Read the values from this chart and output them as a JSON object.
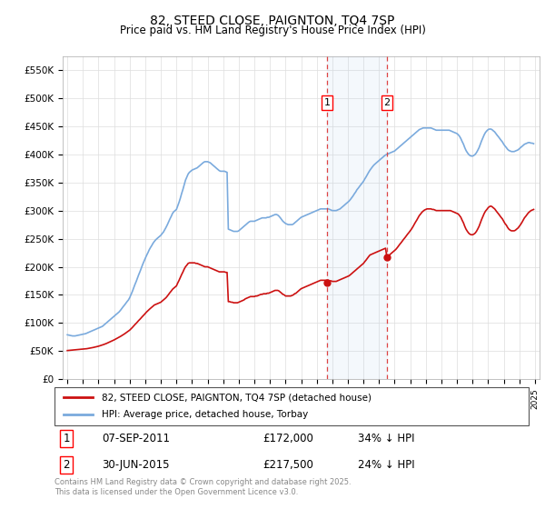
{
  "title": "82, STEED CLOSE, PAIGNTON, TQ4 7SP",
  "subtitle": "Price paid vs. HM Land Registry's House Price Index (HPI)",
  "ylim": [
    0,
    575000
  ],
  "yticks": [
    0,
    50000,
    100000,
    150000,
    200000,
    250000,
    300000,
    350000,
    400000,
    450000,
    500000,
    550000
  ],
  "ytick_labels": [
    "£0",
    "£50K",
    "£100K",
    "£150K",
    "£200K",
    "£250K",
    "£300K",
    "£350K",
    "£400K",
    "£450K",
    "£500K",
    "£550K"
  ],
  "hpi_color": "#7aaadd",
  "price_color": "#cc1111",
  "transaction1": {
    "date": "07-SEP-2011",
    "price": 172000,
    "label": "1",
    "year": 2011.67
  },
  "transaction2": {
    "date": "30-JUN-2015",
    "price": 217500,
    "label": "2",
    "year": 2015.5
  },
  "legend1": "82, STEED CLOSE, PAIGNTON, TQ4 7SP (detached house)",
  "legend2": "HPI: Average price, detached house, Torbay",
  "footnote": "Contains HM Land Registry data © Crown copyright and database right 2025.\nThis data is licensed under the Open Government Licence v3.0.",
  "hpi_data_x": [
    1995.0,
    1995.08,
    1995.17,
    1995.25,
    1995.33,
    1995.42,
    1995.5,
    1995.58,
    1995.67,
    1995.75,
    1995.83,
    1995.92,
    1996.0,
    1996.08,
    1996.17,
    1996.25,
    1996.33,
    1996.42,
    1996.5,
    1996.58,
    1996.67,
    1996.75,
    1996.83,
    1996.92,
    1997.0,
    1997.08,
    1997.17,
    1997.25,
    1997.33,
    1997.42,
    1997.5,
    1997.58,
    1997.67,
    1997.75,
    1997.83,
    1997.92,
    1998.0,
    1998.08,
    1998.17,
    1998.25,
    1998.33,
    1998.42,
    1998.5,
    1998.58,
    1998.67,
    1998.75,
    1998.83,
    1998.92,
    1999.0,
    1999.08,
    1999.17,
    1999.25,
    1999.33,
    1999.42,
    1999.5,
    1999.58,
    1999.67,
    1999.75,
    1999.83,
    1999.92,
    2000.0,
    2000.08,
    2000.17,
    2000.25,
    2000.33,
    2000.42,
    2000.5,
    2000.58,
    2000.67,
    2000.75,
    2000.83,
    2000.92,
    2001.0,
    2001.08,
    2001.17,
    2001.25,
    2001.33,
    2001.42,
    2001.5,
    2001.58,
    2001.67,
    2001.75,
    2001.83,
    2001.92,
    2002.0,
    2002.08,
    2002.17,
    2002.25,
    2002.33,
    2002.42,
    2002.5,
    2002.58,
    2002.67,
    2002.75,
    2002.83,
    2002.92,
    2003.0,
    2003.08,
    2003.17,
    2003.25,
    2003.33,
    2003.42,
    2003.5,
    2003.58,
    2003.67,
    2003.75,
    2003.83,
    2003.92,
    2004.0,
    2004.08,
    2004.17,
    2004.25,
    2004.33,
    2004.42,
    2004.5,
    2004.58,
    2004.67,
    2004.75,
    2004.83,
    2004.92,
    2005.0,
    2005.08,
    2005.17,
    2005.25,
    2005.33,
    2005.42,
    2005.5,
    2005.58,
    2005.67,
    2005.75,
    2005.83,
    2005.92,
    2006.0,
    2006.08,
    2006.17,
    2006.25,
    2006.33,
    2006.42,
    2006.5,
    2006.58,
    2006.67,
    2006.75,
    2006.83,
    2006.92,
    2007.0,
    2007.08,
    2007.17,
    2007.25,
    2007.33,
    2007.42,
    2007.5,
    2007.58,
    2007.67,
    2007.75,
    2007.83,
    2007.92,
    2008.0,
    2008.08,
    2008.17,
    2008.25,
    2008.33,
    2008.42,
    2008.5,
    2008.58,
    2008.67,
    2008.75,
    2008.83,
    2008.92,
    2009.0,
    2009.08,
    2009.17,
    2009.25,
    2009.33,
    2009.42,
    2009.5,
    2009.58,
    2009.67,
    2009.75,
    2009.83,
    2009.92,
    2010.0,
    2010.08,
    2010.17,
    2010.25,
    2010.33,
    2010.42,
    2010.5,
    2010.58,
    2010.67,
    2010.75,
    2010.83,
    2010.92,
    2011.0,
    2011.08,
    2011.17,
    2011.25,
    2011.33,
    2011.42,
    2011.5,
    2011.58,
    2011.67,
    2011.75,
    2011.83,
    2011.92,
    2012.0,
    2012.08,
    2012.17,
    2012.25,
    2012.33,
    2012.42,
    2012.5,
    2012.58,
    2012.67,
    2012.75,
    2012.83,
    2012.92,
    2013.0,
    2013.08,
    2013.17,
    2013.25,
    2013.33,
    2013.42,
    2013.5,
    2013.58,
    2013.67,
    2013.75,
    2013.83,
    2013.92,
    2014.0,
    2014.08,
    2014.17,
    2014.25,
    2014.33,
    2014.42,
    2014.5,
    2014.58,
    2014.67,
    2014.75,
    2014.83,
    2014.92,
    2015.0,
    2015.08,
    2015.17,
    2015.25,
    2015.33,
    2015.42,
    2015.5,
    2015.58,
    2015.67,
    2015.75,
    2015.83,
    2015.92,
    2016.0,
    2016.08,
    2016.17,
    2016.25,
    2016.33,
    2016.42,
    2016.5,
    2016.58,
    2016.67,
    2016.75,
    2016.83,
    2016.92,
    2017.0,
    2017.08,
    2017.17,
    2017.25,
    2017.33,
    2017.42,
    2017.5,
    2017.58,
    2017.67,
    2017.75,
    2017.83,
    2017.92,
    2018.0,
    2018.08,
    2018.17,
    2018.25,
    2018.33,
    2018.42,
    2018.5,
    2018.58,
    2018.67,
    2018.75,
    2018.83,
    2018.92,
    2019.0,
    2019.08,
    2019.17,
    2019.25,
    2019.33,
    2019.42,
    2019.5,
    2019.58,
    2019.67,
    2019.75,
    2019.83,
    2019.92,
    2020.0,
    2020.08,
    2020.17,
    2020.25,
    2020.33,
    2020.42,
    2020.5,
    2020.58,
    2020.67,
    2020.75,
    2020.83,
    2020.92,
    2021.0,
    2021.08,
    2021.17,
    2021.25,
    2021.33,
    2021.42,
    2021.5,
    2021.58,
    2021.67,
    2021.75,
    2021.83,
    2021.92,
    2022.0,
    2022.08,
    2022.17,
    2022.25,
    2022.33,
    2022.42,
    2022.5,
    2022.58,
    2022.67,
    2022.75,
    2022.83,
    2022.92,
    2023.0,
    2023.08,
    2023.17,
    2023.25,
    2023.33,
    2023.42,
    2023.5,
    2023.58,
    2023.67,
    2023.75,
    2023.83,
    2023.92,
    2024.0,
    2024.08,
    2024.17,
    2024.25,
    2024.33,
    2024.42,
    2024.5,
    2024.58,
    2024.67,
    2024.75,
    2024.83,
    2024.92
  ],
  "hpi_data_y": [
    79000,
    78500,
    78000,
    77500,
    77000,
    77000,
    77000,
    77500,
    78000,
    78500,
    79000,
    79500,
    80000,
    80500,
    81000,
    82000,
    83000,
    84000,
    85000,
    86000,
    87000,
    88000,
    89000,
    90000,
    91000,
    92000,
    93000,
    94000,
    96000,
    98000,
    100000,
    102000,
    104000,
    106000,
    108000,
    110000,
    112000,
    114000,
    116000,
    118000,
    120000,
    123000,
    126000,
    129000,
    132000,
    135000,
    138000,
    141000,
    145000,
    150000,
    156000,
    162000,
    168000,
    174000,
    180000,
    186000,
    192000,
    198000,
    204000,
    210000,
    215000,
    220000,
    225000,
    230000,
    234000,
    238000,
    242000,
    245000,
    248000,
    250000,
    252000,
    254000,
    256000,
    259000,
    262000,
    266000,
    270000,
    275000,
    280000,
    285000,
    290000,
    295000,
    298000,
    300000,
    302000,
    308000,
    315000,
    322000,
    330000,
    338000,
    346000,
    354000,
    360000,
    365000,
    368000,
    370000,
    372000,
    373000,
    374000,
    375000,
    376000,
    378000,
    380000,
    382000,
    384000,
    386000,
    387000,
    387000,
    387000,
    386000,
    385000,
    383000,
    381000,
    379000,
    377000,
    375000,
    373000,
    371000,
    370000,
    370000,
    370000,
    370000,
    369000,
    368000,
    267000,
    266000,
    265000,
    264000,
    263000,
    263000,
    263000,
    263000,
    264000,
    266000,
    268000,
    270000,
    272000,
    274000,
    276000,
    278000,
    280000,
    281000,
    281000,
    281000,
    281000,
    282000,
    283000,
    284000,
    285000,
    286000,
    287000,
    287000,
    287000,
    287000,
    288000,
    288000,
    289000,
    290000,
    291000,
    292000,
    293000,
    293000,
    292000,
    290000,
    287000,
    284000,
    281000,
    279000,
    277000,
    276000,
    275000,
    275000,
    275000,
    275000,
    276000,
    278000,
    280000,
    282000,
    284000,
    286000,
    288000,
    289000,
    290000,
    291000,
    292000,
    293000,
    294000,
    295000,
    296000,
    297000,
    298000,
    299000,
    300000,
    301000,
    302000,
    303000,
    303000,
    303000,
    303000,
    303000,
    303000,
    303000,
    302000,
    301000,
    300000,
    300000,
    300000,
    300000,
    301000,
    302000,
    303000,
    305000,
    307000,
    309000,
    311000,
    313000,
    315000,
    317000,
    320000,
    323000,
    326000,
    330000,
    333000,
    337000,
    340000,
    343000,
    346000,
    349000,
    352000,
    356000,
    360000,
    364000,
    368000,
    372000,
    375000,
    378000,
    381000,
    383000,
    385000,
    387000,
    389000,
    391000,
    393000,
    395000,
    397000,
    399000,
    400000,
    401000,
    402000,
    403000,
    404000,
    405000,
    406000,
    408000,
    410000,
    412000,
    414000,
    416000,
    418000,
    420000,
    422000,
    424000,
    426000,
    428000,
    430000,
    432000,
    434000,
    436000,
    438000,
    440000,
    442000,
    444000,
    445000,
    446000,
    447000,
    447000,
    447000,
    447000,
    447000,
    447000,
    447000,
    446000,
    445000,
    444000,
    443000,
    443000,
    443000,
    443000,
    443000,
    443000,
    443000,
    443000,
    443000,
    443000,
    443000,
    442000,
    441000,
    440000,
    439000,
    438000,
    437000,
    435000,
    432000,
    428000,
    423000,
    418000,
    412000,
    407000,
    403000,
    400000,
    398000,
    397000,
    397000,
    398000,
    400000,
    403000,
    407000,
    412000,
    418000,
    424000,
    430000,
    435000,
    439000,
    442000,
    444000,
    445000,
    445000,
    444000,
    442000,
    440000,
    437000,
    434000,
    431000,
    428000,
    425000,
    422000,
    418000,
    415000,
    412000,
    409000,
    407000,
    406000,
    405000,
    405000,
    405000,
    406000,
    407000,
    408000,
    410000,
    412000,
    414000,
    416000,
    418000,
    419000,
    420000,
    421000,
    421000,
    420000,
    420000,
    419000
  ],
  "price_data_x": [
    1995.0,
    1995.08,
    1995.17,
    1995.25,
    1995.33,
    1995.42,
    1995.5,
    1995.58,
    1995.67,
    1995.75,
    1995.83,
    1995.92,
    1996.0,
    1996.08,
    1996.17,
    1996.25,
    1996.33,
    1996.42,
    1996.5,
    1996.58,
    1996.67,
    1996.75,
    1996.83,
    1996.92,
    1997.0,
    1997.08,
    1997.17,
    1997.25,
    1997.33,
    1997.42,
    1997.5,
    1997.58,
    1997.67,
    1997.75,
    1997.83,
    1997.92,
    1998.0,
    1998.08,
    1998.17,
    1998.25,
    1998.33,
    1998.42,
    1998.5,
    1998.58,
    1998.67,
    1998.75,
    1998.83,
    1998.92,
    1999.0,
    1999.08,
    1999.17,
    1999.25,
    1999.33,
    1999.42,
    1999.5,
    1999.58,
    1999.67,
    1999.75,
    1999.83,
    1999.92,
    2000.0,
    2000.08,
    2000.17,
    2000.25,
    2000.33,
    2000.42,
    2000.5,
    2000.58,
    2000.67,
    2000.75,
    2000.83,
    2000.92,
    2001.0,
    2001.08,
    2001.17,
    2001.25,
    2001.33,
    2001.42,
    2001.5,
    2001.58,
    2001.67,
    2001.75,
    2001.83,
    2001.92,
    2002.0,
    2002.08,
    2002.17,
    2002.25,
    2002.33,
    2002.42,
    2002.5,
    2002.58,
    2002.67,
    2002.75,
    2002.83,
    2002.92,
    2003.0,
    2003.08,
    2003.17,
    2003.25,
    2003.33,
    2003.42,
    2003.5,
    2003.58,
    2003.67,
    2003.75,
    2003.83,
    2003.92,
    2004.0,
    2004.08,
    2004.17,
    2004.25,
    2004.33,
    2004.42,
    2004.5,
    2004.58,
    2004.67,
    2004.75,
    2004.83,
    2004.92,
    2005.0,
    2005.08,
    2005.17,
    2005.25,
    2005.33,
    2005.42,
    2005.5,
    2005.58,
    2005.67,
    2005.75,
    2005.83,
    2005.92,
    2006.0,
    2006.08,
    2006.17,
    2006.25,
    2006.33,
    2006.42,
    2006.5,
    2006.58,
    2006.67,
    2006.75,
    2006.83,
    2006.92,
    2007.0,
    2007.08,
    2007.17,
    2007.25,
    2007.33,
    2007.42,
    2007.5,
    2007.58,
    2007.67,
    2007.75,
    2007.83,
    2007.92,
    2008.0,
    2008.08,
    2008.17,
    2008.25,
    2008.33,
    2008.42,
    2008.5,
    2008.58,
    2008.67,
    2008.75,
    2008.83,
    2008.92,
    2009.0,
    2009.08,
    2009.17,
    2009.25,
    2009.33,
    2009.42,
    2009.5,
    2009.58,
    2009.67,
    2009.75,
    2009.83,
    2009.92,
    2010.0,
    2010.08,
    2010.17,
    2010.25,
    2010.33,
    2010.42,
    2010.5,
    2010.58,
    2010.67,
    2010.75,
    2010.83,
    2010.92,
    2011.0,
    2011.08,
    2011.17,
    2011.25,
    2011.33,
    2011.42,
    2011.5,
    2011.58,
    2011.67,
    2011.75,
    2011.83,
    2011.92,
    2012.0,
    2012.08,
    2012.17,
    2012.25,
    2012.33,
    2012.42,
    2012.5,
    2012.58,
    2012.67,
    2012.75,
    2012.83,
    2012.92,
    2013.0,
    2013.08,
    2013.17,
    2013.25,
    2013.33,
    2013.42,
    2013.5,
    2013.58,
    2013.67,
    2013.75,
    2013.83,
    2013.92,
    2014.0,
    2014.08,
    2014.17,
    2014.25,
    2014.33,
    2014.42,
    2014.5,
    2014.58,
    2014.67,
    2014.75,
    2014.83,
    2014.92,
    2015.0,
    2015.08,
    2015.17,
    2015.25,
    2015.33,
    2015.42,
    2015.5,
    2015.58,
    2015.67,
    2015.75,
    2015.83,
    2015.92,
    2016.0,
    2016.08,
    2016.17,
    2016.25,
    2016.33,
    2016.42,
    2016.5,
    2016.58,
    2016.67,
    2016.75,
    2016.83,
    2016.92,
    2017.0,
    2017.08,
    2017.17,
    2017.25,
    2017.33,
    2017.42,
    2017.5,
    2017.58,
    2017.67,
    2017.75,
    2017.83,
    2017.92,
    2018.0,
    2018.08,
    2018.17,
    2018.25,
    2018.33,
    2018.42,
    2018.5,
    2018.58,
    2018.67,
    2018.75,
    2018.83,
    2018.92,
    2019.0,
    2019.08,
    2019.17,
    2019.25,
    2019.33,
    2019.42,
    2019.5,
    2019.58,
    2019.67,
    2019.75,
    2019.83,
    2019.92,
    2020.0,
    2020.08,
    2020.17,
    2020.25,
    2020.33,
    2020.42,
    2020.5,
    2020.58,
    2020.67,
    2020.75,
    2020.83,
    2020.92,
    2021.0,
    2021.08,
    2021.17,
    2021.25,
    2021.33,
    2021.42,
    2021.5,
    2021.58,
    2021.67,
    2021.75,
    2021.83,
    2021.92,
    2022.0,
    2022.08,
    2022.17,
    2022.25,
    2022.33,
    2022.42,
    2022.5,
    2022.58,
    2022.67,
    2022.75,
    2022.83,
    2022.92,
    2023.0,
    2023.08,
    2023.17,
    2023.25,
    2023.33,
    2023.42,
    2023.5,
    2023.58,
    2023.67,
    2023.75,
    2023.83,
    2023.92,
    2024.0,
    2024.08,
    2024.17,
    2024.25,
    2024.33,
    2024.42,
    2024.5,
    2024.58,
    2024.67,
    2024.75,
    2024.83,
    2024.92
  ],
  "price_data_y": [
    51000,
    51200,
    51400,
    51600,
    51800,
    52000,
    52200,
    52400,
    52600,
    52800,
    53000,
    53200,
    53400,
    53700,
    54000,
    54300,
    54700,
    55100,
    55500,
    56000,
    56500,
    57000,
    57500,
    58100,
    58700,
    59400,
    60100,
    60900,
    61700,
    62600,
    63500,
    64500,
    65500,
    66600,
    67700,
    68800,
    69900,
    71100,
    72300,
    73600,
    74900,
    76300,
    77700,
    79200,
    80700,
    82300,
    83900,
    85600,
    87300,
    89500,
    92000,
    94500,
    97000,
    99500,
    102000,
    104500,
    107000,
    109500,
    112000,
    114500,
    117000,
    119500,
    122000,
    124000,
    126000,
    128000,
    130000,
    132000,
    133000,
    134000,
    135000,
    136000,
    137000,
    139000,
    141000,
    143000,
    145000,
    148000,
    151000,
    154000,
    157000,
    160000,
    162000,
    164000,
    166000,
    171000,
    176000,
    181000,
    186000,
    191000,
    196000,
    200000,
    203000,
    206000,
    207000,
    207000,
    207000,
    207000,
    207000,
    206000,
    206000,
    205000,
    204000,
    203000,
    202000,
    201000,
    200000,
    200000,
    200000,
    199000,
    198000,
    197000,
    196000,
    195000,
    194000,
    193000,
    192000,
    191000,
    191000,
    191000,
    191000,
    191000,
    190000,
    190000,
    138000,
    138000,
    137000,
    137000,
    136000,
    136000,
    136000,
    136000,
    137000,
    138000,
    139000,
    140000,
    141000,
    143000,
    144000,
    145000,
    146000,
    147000,
    147000,
    147000,
    147000,
    148000,
    148000,
    149000,
    150000,
    151000,
    151000,
    152000,
    152000,
    152000,
    153000,
    153000,
    154000,
    155000,
    156000,
    157000,
    158000,
    158000,
    158000,
    157000,
    155000,
    153000,
    151000,
    150000,
    148000,
    148000,
    148000,
    148000,
    148000,
    149000,
    150000,
    152000,
    153000,
    155000,
    157000,
    159000,
    161000,
    162000,
    163000,
    164000,
    165000,
    166000,
    167000,
    168000,
    169000,
    170000,
    171000,
    172000,
    173000,
    174000,
    175000,
    176000,
    176000,
    176000,
    176000,
    176000,
    176000,
    176000,
    175000,
    175000,
    174000,
    174000,
    174000,
    174000,
    175000,
    176000,
    177000,
    178000,
    179000,
    180000,
    181000,
    182000,
    183000,
    184000,
    186000,
    188000,
    190000,
    192000,
    194000,
    196000,
    198000,
    200000,
    202000,
    204000,
    206000,
    209000,
    212000,
    215000,
    218000,
    221000,
    222000,
    223000,
    224000,
    225000,
    226000,
    227000,
    228000,
    229000,
    230000,
    231000,
    232000,
    233000,
    217500,
    219000,
    221000,
    223000,
    225000,
    227000,
    229000,
    231000,
    234000,
    237000,
    240000,
    243000,
    246000,
    249000,
    252000,
    255000,
    258000,
    261000,
    264000,
    267000,
    271000,
    275000,
    279000,
    283000,
    287000,
    291000,
    294000,
    297000,
    299000,
    301000,
    302000,
    303000,
    303000,
    303000,
    303000,
    302000,
    302000,
    301000,
    300000,
    300000,
    300000,
    300000,
    300000,
    300000,
    300000,
    300000,
    300000,
    300000,
    300000,
    300000,
    299000,
    298000,
    297000,
    296000,
    295000,
    294000,
    291000,
    288000,
    283000,
    278000,
    272000,
    267000,
    263000,
    260000,
    258000,
    257000,
    257000,
    258000,
    260000,
    263000,
    267000,
    272000,
    278000,
    284000,
    290000,
    295000,
    299000,
    302000,
    305000,
    307000,
    308000,
    307000,
    305000,
    303000,
    300000,
    297000,
    294000,
    291000,
    288000,
    285000,
    281000,
    277000,
    274000,
    270000,
    267000,
    265000,
    264000,
    264000,
    264000,
    265000,
    267000,
    269000,
    272000,
    275000,
    279000,
    283000,
    287000,
    290000,
    293000,
    296000,
    298000,
    300000,
    301000,
    302000
  ]
}
